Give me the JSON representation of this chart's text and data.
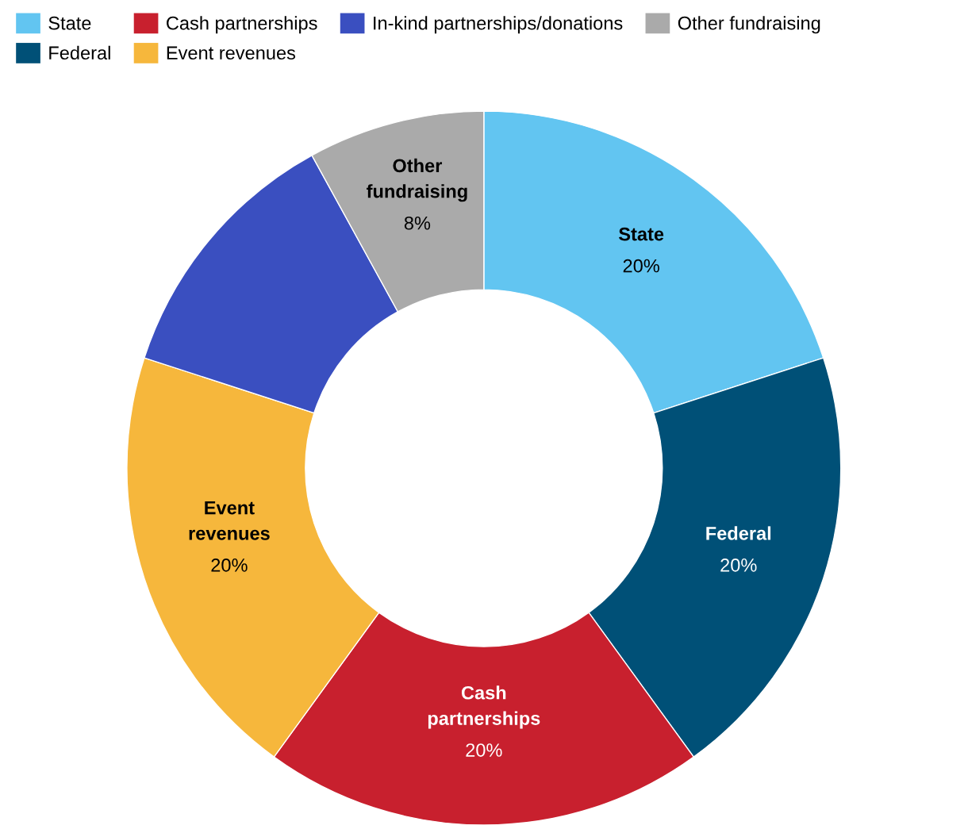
{
  "chart_data": {
    "type": "donut",
    "categories": [
      "State",
      "Federal",
      "Cash partnerships",
      "Event revenues",
      "In-kind partnerships/donations",
      "Other fundraising"
    ],
    "values": [
      20,
      20,
      20,
      20,
      12,
      8
    ],
    "colors": [
      "#62c5f1",
      "#005077",
      "#c8202e",
      "#f6b73c",
      "#3a4fc0",
      "#aaaaaa"
    ],
    "value_labels": [
      "20%",
      "20%",
      "20%",
      "20%",
      null,
      "8%"
    ],
    "legend": "top left"
  }
}
